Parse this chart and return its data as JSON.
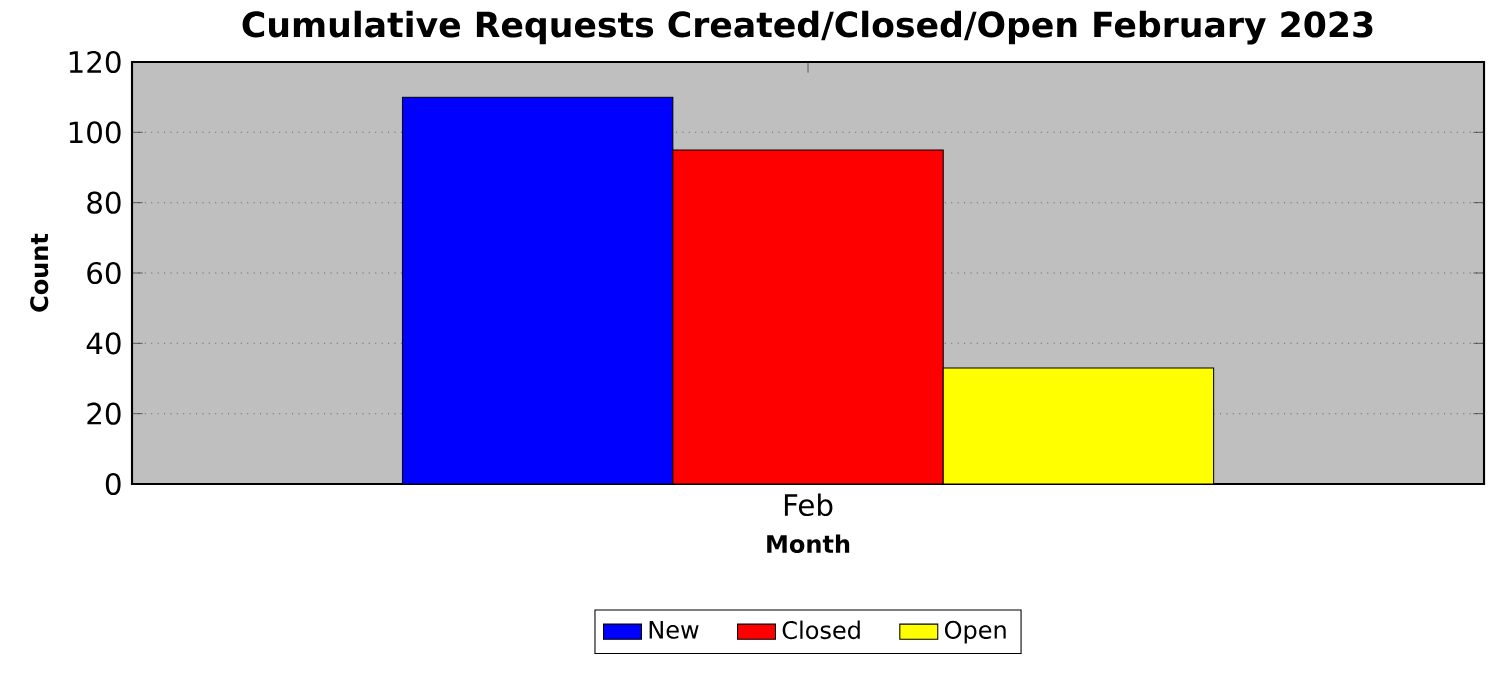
{
  "chart_data": {
    "type": "bar",
    "title": "Cumulative Requests Created/Closed/Open February 2023",
    "xlabel": "Month",
    "ylabel": "Count",
    "categories": [
      "Feb"
    ],
    "series": [
      {
        "name": "New",
        "color": "#0000ff",
        "values": [
          110
        ]
      },
      {
        "name": "Closed",
        "color": "#ff0000",
        "values": [
          95
        ]
      },
      {
        "name": "Open",
        "color": "#ffff00",
        "values": [
          33
        ]
      }
    ],
    "ylim": [
      0,
      120
    ],
    "yticks": [
      0,
      20,
      40,
      60,
      80,
      100,
      120
    ],
    "grid": "y",
    "legend": "bottom"
  }
}
